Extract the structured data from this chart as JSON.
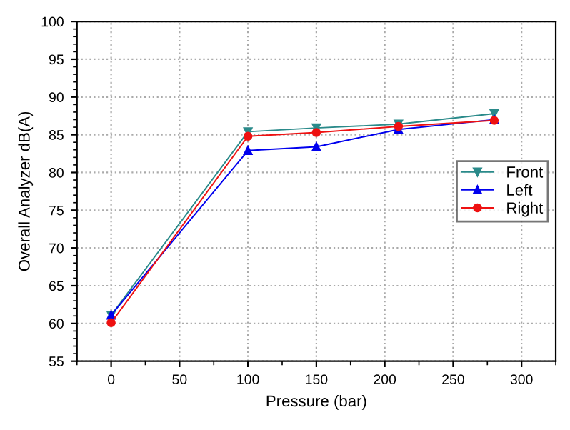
{
  "chart_data": {
    "type": "line",
    "xlabel": "Pressure (bar)",
    "ylabel": "Overall Analyzer dB(A)",
    "x": [
      0,
      100,
      150,
      210,
      280
    ],
    "series": [
      {
        "name": "Front",
        "color": "#2a8a8a",
        "marker": "triangle_down",
        "values": [
          61.1,
          85.4,
          85.9,
          86.4,
          87.8
        ]
      },
      {
        "name": "Left",
        "color": "#0000ee",
        "marker": "triangle",
        "values": [
          61.1,
          82.9,
          83.4,
          85.7,
          87.0
        ]
      },
      {
        "name": "Right",
        "color": "#ee1111",
        "marker": "circle",
        "values": [
          60.1,
          84.8,
          85.3,
          86.1,
          86.9
        ]
      }
    ],
    "xlim": [
      -25,
      325
    ],
    "xticks": [
      0,
      50,
      100,
      150,
      200,
      250,
      300
    ],
    "ylim": [
      55,
      100
    ],
    "yticks": [
      55,
      60,
      65,
      70,
      75,
      80,
      85,
      90,
      95,
      100
    ],
    "grid": true,
    "legend": "right",
    "line_style": "solid"
  }
}
